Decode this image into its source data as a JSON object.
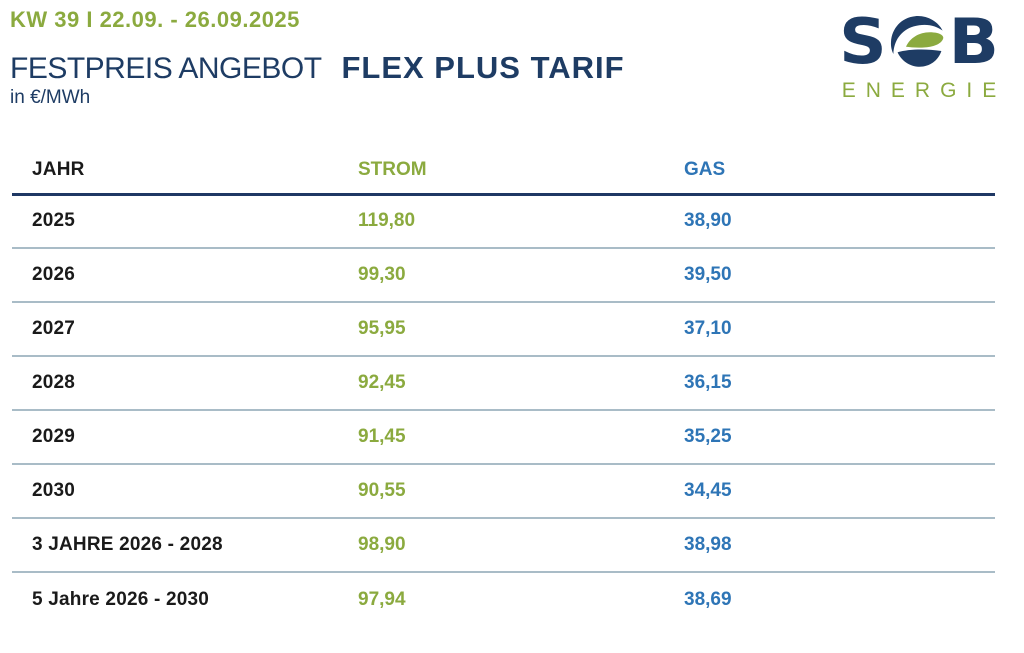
{
  "header": {
    "week_label": "KW 39 I 22.09. - 26.09.2025",
    "title_regular": "FESTPREIS ANGEBOT",
    "title_bold": "FLEX PLUS TARIF",
    "unit": "in €/MWh"
  },
  "logo": {
    "letter_left": "S",
    "letter_right": "B",
    "wordmark": "ENERGIE",
    "emblem": "globe-swoosh-icon"
  },
  "colors": {
    "green": "#8BAA3F",
    "navy": "#1E3C64",
    "blue": "#2E75B6",
    "header_rule": "#1F3864",
    "separator": "#A9BCC7",
    "text_dark": "#1A1A1A"
  },
  "table": {
    "columns": [
      {
        "key": "jahr",
        "label": "JAHR"
      },
      {
        "key": "strom",
        "label": "STROM"
      },
      {
        "key": "gas",
        "label": "GAS"
      }
    ],
    "rows": [
      {
        "jahr": "2025",
        "strom": "119,80",
        "gas": "38,90"
      },
      {
        "jahr": "2026",
        "strom": "99,30",
        "gas": "39,50"
      },
      {
        "jahr": "2027",
        "strom": "95,95",
        "gas": "37,10"
      },
      {
        "jahr": "2028",
        "strom": "92,45",
        "gas": "36,15"
      },
      {
        "jahr": "2029",
        "strom": "91,45",
        "gas": "35,25"
      },
      {
        "jahr": "2030",
        "strom": "90,55",
        "gas": "34,45"
      },
      {
        "jahr": "3 JAHRE 2026 - 2028",
        "strom": "98,90",
        "gas": "38,98"
      },
      {
        "jahr": "5 Jahre 2026 - 2030",
        "strom": "97,94",
        "gas": "38,69"
      }
    ]
  }
}
